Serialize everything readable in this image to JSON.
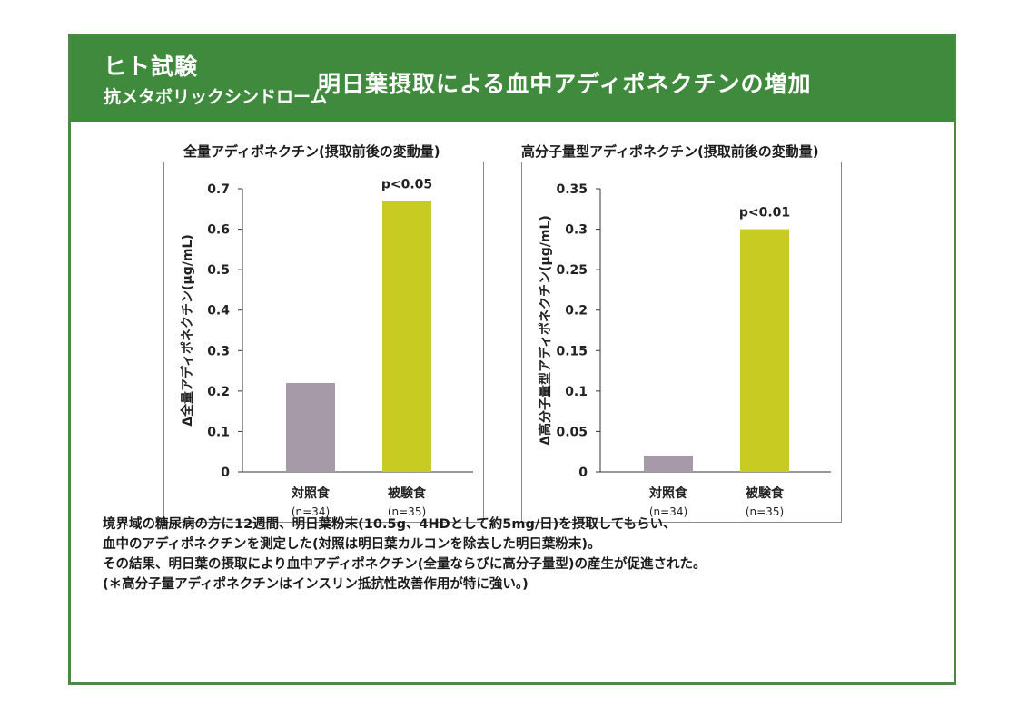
{
  "header": {
    "main": "ヒト試験",
    "sub": "抗メタボリックシンドローム",
    "title": "明日葉摂取による血中アディポネクチンの増加"
  },
  "colors": {
    "green": "#3f8a3d",
    "control_bar": "#a79aa8",
    "test_bar": "#c8cb21"
  },
  "chart_data": [
    {
      "type": "bar",
      "title": "全量アディポネクチン(摂取前後の変動量)",
      "ylabel": "Δ全量アディポネクチン(μg/mL)",
      "categories": [
        "対照食",
        "被験食"
      ],
      "category_notes": [
        "(n=34)",
        "(n=35)"
      ],
      "values": [
        0.22,
        0.67
      ],
      "ylim": [
        0,
        0.7
      ],
      "yticks": [
        "0",
        "0.1",
        "0.2",
        "0.3",
        "0.4",
        "0.5",
        "0.6",
        "0.7"
      ],
      "annotation": "p<0.05"
    },
    {
      "type": "bar",
      "title": "高分子量型アディポネクチン(摂取前後の変動量)",
      "ylabel": "Δ高分子量型アディポネクチン(μg/mL)",
      "categories": [
        "対照食",
        "被験食"
      ],
      "category_notes": [
        "(n=34)",
        "(n=35)"
      ],
      "values": [
        0.02,
        0.3
      ],
      "ylim": [
        0,
        0.35
      ],
      "yticks": [
        "0",
        "0.05",
        "0.1",
        "0.15",
        "0.2",
        "0.25",
        "0.3",
        "0.35"
      ],
      "annotation": "p<0.01"
    }
  ],
  "notes": [
    "境界域の糖尿病の方に12週間、明日葉粉末(10.5g、4HDとして約5mg/日)を摂取してもらい、",
    "血中のアディポネクチンを測定した(対照は明日葉カルコンを除去した明日葉粉末)。",
    "その結果、明日葉の摂取により血中アディポネクチン(全量ならびに高分子量型)の産生が促進された。",
    "(＊高分子量アディポネクチンはインスリン抵抗性改善作用が特に強い。)"
  ]
}
